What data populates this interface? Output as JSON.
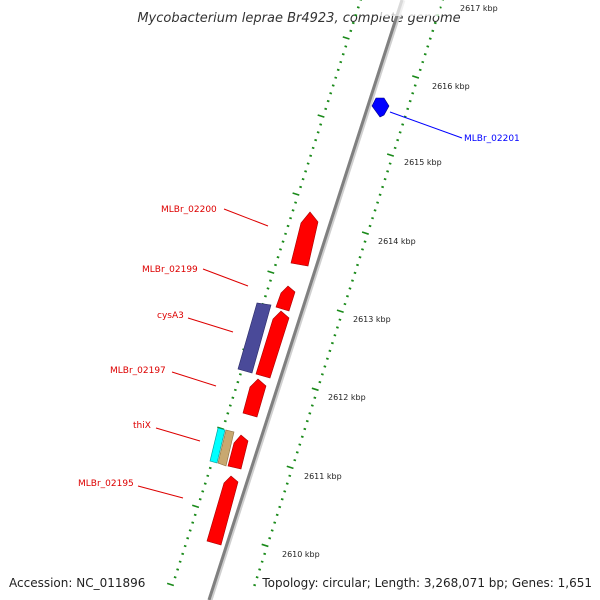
{
  "title": "Mycobacterium leprae Br4923, complete genome",
  "accession": "Accession: NC_011896",
  "topology": "Topology: circular; Length: 3,268,071 bp; Genes: 1,651",
  "colors": {
    "backbone": "#888888",
    "tick": "#1a8a1a",
    "gene_red": "#ff0000",
    "gene_blue": "#0000ff",
    "gene_purple": "#4a4a99",
    "gene_cyan": "#00ffff",
    "gene_tan": "#c8a870"
  },
  "kbp_labels": [
    "2617 kbp",
    "2616 kbp",
    "2615 kbp",
    "2614 kbp",
    "2613 kbp",
    "2612 kbp",
    "2611 kbp",
    "2610 kbp"
  ],
  "genes": [
    {
      "name": "MLBr_02201",
      "color": "#0000ff"
    },
    {
      "name": "MLBr_02200",
      "color": "#ff0000"
    },
    {
      "name": "MLBr_02199",
      "color": "#ff0000"
    },
    {
      "name": "cysA3",
      "color": "#ff0000"
    },
    {
      "name": "MLBr_02197",
      "color": "#ff0000"
    },
    {
      "name": "thiX",
      "color": "#ff0000"
    },
    {
      "name": "MLBr_02195",
      "color": "#ff0000"
    }
  ]
}
